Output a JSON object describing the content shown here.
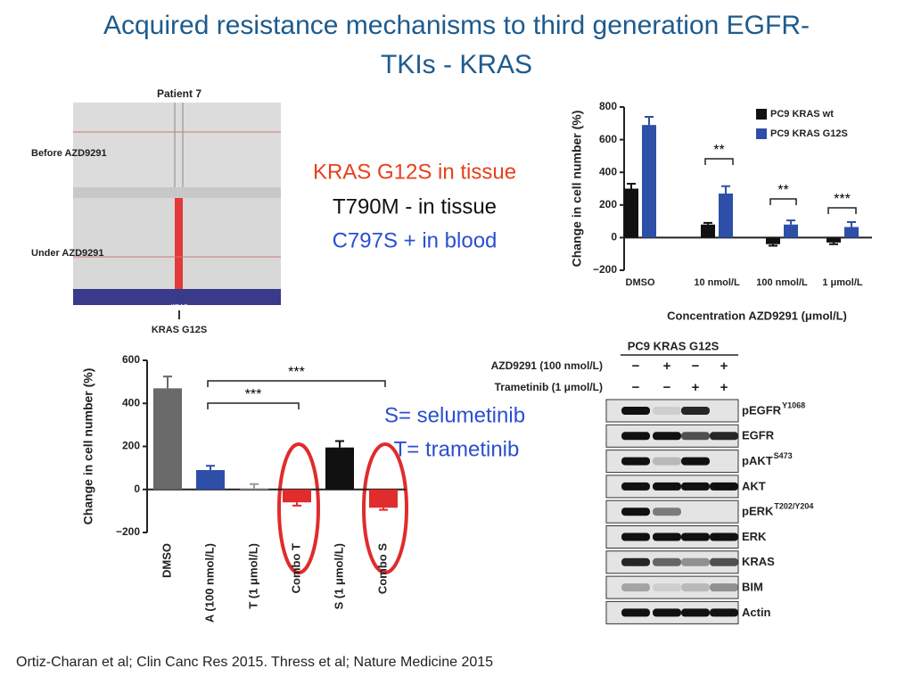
{
  "title": "Acquired resistance mechanisms to third generation EGFR-TKIs - KRAS",
  "findings": [
    "KRAS G12S in tissue",
    "T790M - in tissue",
    "C797S + in blood"
  ],
  "legend_notes": [
    "S= selumetinib",
    "T= trametinib"
  ],
  "citation": "Ortiz-Charan et al; Clin Canc Res 2015. Thress et al; Nature Medicine 2015",
  "igv": {
    "title": "Patient 7",
    "before": "Before AZD9291",
    "under": "Under AZD9291",
    "gene": "KRAS",
    "mutation": "KRAS G12S"
  },
  "blot": {
    "header": "PC9 KRAS G12S",
    "treatments": [
      {
        "name": "AZD9291 (100 nmol/L)",
        "signs": [
          "−",
          "+",
          "−",
          "+"
        ]
      },
      {
        "name": "Trametinib (1 μmol/L)",
        "signs": [
          "−",
          "−",
          "+",
          "+"
        ]
      }
    ],
    "bands": [
      {
        "name": "pEGFR",
        "sup": "Y1068"
      },
      {
        "name": "EGFR"
      },
      {
        "name": "pAKT",
        "sup": "S473"
      },
      {
        "name": "AKT"
      },
      {
        "name": "pERK",
        "sup": "T202/Y204"
      },
      {
        "name": "ERK"
      },
      {
        "name": "KRAS"
      },
      {
        "name": "BIM"
      },
      {
        "name": "Actin"
      }
    ]
  },
  "chart_data": [
    {
      "type": "bar",
      "x_label": "Concentration AZD9291 (μmol/L)",
      "y_label": "Change in cell number (%)",
      "categories": [
        "DMSO",
        "10 nmol/L",
        "100 nmol/L",
        "1 μmol/L"
      ],
      "series": [
        {
          "name": "PC9 KRAS wt",
          "color": "#111111",
          "values": [
            300,
            80,
            -40,
            -30
          ],
          "errors": [
            30,
            10,
            10,
            10
          ]
        },
        {
          "name": "PC9 KRAS G12S",
          "color": "#2e4fa8",
          "values": [
            690,
            270,
            80,
            65
          ],
          "errors": [
            50,
            45,
            25,
            30
          ]
        }
      ],
      "ylim": [
        -200,
        800
      ],
      "yticks": [
        {
          "value": -200,
          "label": "−200"
        },
        0,
        200,
        400,
        600,
        800
      ],
      "annotations": [
        "**",
        "**",
        "***"
      ]
    },
    {
      "type": "bar",
      "y_label": "Change in cell number (%)",
      "categories": [
        "DMSO",
        "A (100 nmol/L)",
        "T (1 μmol/L)",
        "Combo T",
        "S (1 μmol/L)",
        "Combo S"
      ],
      "values": [
        470,
        90,
        5,
        -60,
        195,
        -85
      ],
      "errors": [
        55,
        20,
        20,
        15,
        30,
        10
      ],
      "colors": [
        "#6a6a6a",
        "#2e4fa8",
        "#9a9a9a",
        "#e02c2c",
        "#111111",
        "#e02c2c"
      ],
      "ylim": [
        -200,
        600
      ],
      "yticks": [
        {
          "value": -200,
          "label": "−200"
        },
        0,
        200,
        400,
        600
      ],
      "annotations": [
        "***",
        "***"
      ]
    }
  ]
}
